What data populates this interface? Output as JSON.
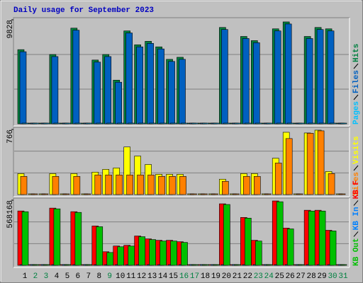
{
  "chart_data": [
    {
      "type": "bar",
      "title": "Daily usage for September 2023",
      "title_color": "#0000c0",
      "ylim": [
        0,
        9828
      ],
      "yticks": [
        9828
      ],
      "series": [
        {
          "name": "Hits",
          "color": "#008040",
          "values": [
            7010,
            0,
            0,
            6552,
            0,
            9042,
            0,
            6028,
            6552,
            4128,
            8780,
            7469,
            7797,
            7273,
            6093,
            6290,
            0,
            0,
            0,
            9107,
            0,
            8256,
            7862,
            0,
            8976,
            9631,
            0,
            8256,
            9107,
            8976,
            0
          ]
        },
        {
          "name": "Files",
          "color": "#0060c0",
          "values": [
            6814,
            0,
            0,
            6356,
            0,
            8846,
            0,
            5832,
            6356,
            3932,
            8584,
            7273,
            7601,
            7077,
            5897,
            6094,
            0,
            0,
            0,
            8911,
            0,
            8060,
            7666,
            0,
            8780,
            9435,
            0,
            8060,
            8911,
            8780,
            0
          ]
        },
        {
          "name": "Pages",
          "color": "#00c0ff",
          "values": [
            0,
            0,
            0,
            0,
            0,
            0,
            0,
            0,
            0,
            0,
            0,
            0,
            0,
            0,
            0,
            0,
            0,
            0,
            0,
            0,
            0,
            0,
            0,
            0,
            0,
            0,
            0,
            0,
            0,
            0,
            0
          ]
        }
      ]
    },
    {
      "type": "bar",
      "ylim": [
        0,
        766
      ],
      "yticks": [
        766
      ],
      "series": [
        {
          "name": "Visits",
          "color": "#ffff00",
          "values": [
            247,
            0,
            0,
            247,
            0,
            247,
            0,
            264,
            297,
            313,
            560,
            453,
            354,
            239,
            239,
            239,
            0,
            0,
            0,
            181,
            0,
            247,
            247,
            0,
            428,
            733,
            0,
            725,
            758,
            272,
            0
          ]
        },
        {
          "name": "Sites",
          "color": "#ff8000",
          "values": [
            214,
            0,
            0,
            214,
            0,
            214,
            0,
            231,
            231,
            231,
            231,
            231,
            231,
            214,
            214,
            214,
            0,
            0,
            0,
            156,
            0,
            214,
            214,
            0,
            371,
            659,
            0,
            722,
            750,
            247,
            0
          ]
        }
      ]
    },
    {
      "type": "bar",
      "ylim": [
        0,
        568168
      ],
      "yticks": [
        568168
      ],
      "categories": [
        "1",
        "2",
        "3",
        "4",
        "5",
        "6",
        "7",
        "8",
        "9",
        "10",
        "11",
        "12",
        "13",
        "14",
        "15",
        "16",
        "17",
        "18",
        "19",
        "20",
        "21",
        "22",
        "23",
        "24",
        "25",
        "26",
        "27",
        "28",
        "29",
        "30",
        "31"
      ],
      "category_colors": [
        "#000000",
        "#008040",
        "#008040",
        "#000000",
        "#000000",
        "#000000",
        "#000000",
        "#000000",
        "#008040",
        "#000000",
        "#000000",
        "#000000",
        "#000000",
        "#000000",
        "#000000",
        "#008040",
        "#008040",
        "#000000",
        "#000000",
        "#000000",
        "#000000",
        "#000000",
        "#008040",
        "#008040",
        "#000000",
        "#000000",
        "#000000",
        "#000000",
        "#000000",
        "#008040",
        "#008040"
      ],
      "series": [
        {
          "name": "KB F",
          "color": "#ff0000",
          "values": [
            474500,
            0,
            0,
            499500,
            0,
            468300,
            0,
            343400,
            118600,
            168600,
            174800,
            256000,
            231000,
            218500,
            218500,
            206000,
            0,
            0,
            0,
            537000,
            0,
            418000,
            218500,
            0,
            561900,
            324700,
            0,
            480800,
            480800,
            306000,
            0
          ]
        },
        {
          "name": "KB In",
          "color": "#0080ff",
          "values": [
            0,
            0,
            0,
            0,
            0,
            0,
            0,
            0,
            0,
            0,
            0,
            0,
            0,
            0,
            0,
            0,
            0,
            0,
            0,
            0,
            0,
            0,
            0,
            0,
            0,
            0,
            0,
            0,
            0,
            0,
            0
          ]
        },
        {
          "name": "KB Out",
          "color": "#00c000",
          "values": [
            468000,
            0,
            0,
            493000,
            0,
            462000,
            0,
            337000,
            112000,
            162000,
            168000,
            250000,
            225000,
            212000,
            212000,
            200000,
            0,
            0,
            0,
            531000,
            0,
            412000,
            212000,
            0,
            555000,
            318000,
            0,
            474000,
            474000,
            300000,
            0
          ]
        }
      ]
    }
  ]
}
